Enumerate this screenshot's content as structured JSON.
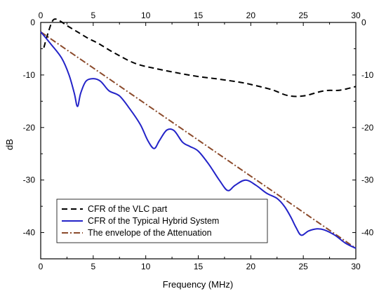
{
  "chart_data": {
    "type": "line",
    "xlabel": "Frequency (MHz)",
    "ylabel": "dB",
    "xlim": [
      0,
      30
    ],
    "ylim": [
      -45,
      0
    ],
    "x_ticks": [
      0,
      5,
      10,
      15,
      20,
      25,
      30
    ],
    "y_ticks": [
      0,
      -10,
      -20,
      -30,
      -40
    ],
    "secondary_axes": "mirrored top and right",
    "grid": false,
    "legend_position": "bottom-left",
    "series": [
      {
        "name": "CFR of the VLC part",
        "style": "dashed",
        "color": "#000000",
        "x": [
          0.3,
          0.7,
          1.2,
          1.8,
          2.5,
          3.5,
          4.5,
          5.5,
          7,
          9,
          11,
          13,
          15,
          17,
          19,
          20,
          22,
          23.5,
          25,
          27,
          28.5,
          30
        ],
        "y": [
          -4.8,
          -2,
          0.5,
          0.3,
          -0.6,
          -1.8,
          -3,
          -4,
          -5.8,
          -7.8,
          -8.8,
          -9.6,
          -10.3,
          -10.8,
          -11.4,
          -11.8,
          -12.8,
          -13.9,
          -14.0,
          -13.0,
          -12.9,
          -12.2
        ]
      },
      {
        "name": "CFR of the Typical Hybrid System",
        "style": "solid",
        "color": "#2323c8",
        "x": [
          0,
          1,
          2,
          2.7,
          3.2,
          3.5,
          3.8,
          4.3,
          5,
          5.7,
          6.5,
          7.5,
          8.5,
          9.5,
          10.2,
          10.8,
          11.3,
          12,
          12.7,
          13.5,
          14.2,
          15,
          16,
          17,
          17.8,
          18.5,
          19.5,
          20.5,
          21.5,
          22.5,
          23.2,
          23.8,
          24.3,
          24.8,
          25.5,
          26.3,
          27,
          28,
          29,
          30
        ],
        "y": [
          -1.8,
          -4.2,
          -6.8,
          -10,
          -13.5,
          -16.0,
          -13.5,
          -11.2,
          -10.7,
          -11.2,
          -13.0,
          -14.0,
          -16.5,
          -19.5,
          -22.5,
          -24.0,
          -22.5,
          -20.5,
          -20.6,
          -22.8,
          -23.6,
          -24.5,
          -27.0,
          -30.0,
          -32.0,
          -31.0,
          -30.0,
          -31.0,
          -32.5,
          -33.5,
          -35.0,
          -37.0,
          -39.0,
          -40.5,
          -39.7,
          -39.3,
          -39.5,
          -40.5,
          -42.0,
          -43.0
        ]
      },
      {
        "name": "The envelope of the Attenuation",
        "style": "dashdot",
        "color": "#8b4a2b",
        "x": [
          0,
          30
        ],
        "y": [
          -1.8,
          -43.0
        ]
      }
    ]
  }
}
